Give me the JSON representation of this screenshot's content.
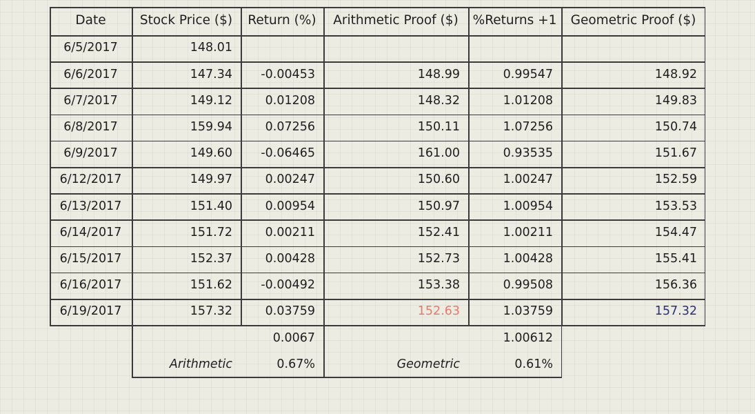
{
  "table": {
    "headers": [
      "Date",
      "Stock Price ($)",
      "Return (%)",
      "Arithmetic Proof ($)",
      "%Returns +1",
      "Geometric Proof ($)"
    ],
    "rows": [
      [
        "6/5/2017",
        "148.01",
        "",
        "",
        "",
        ""
      ],
      [
        "6/6/2017",
        "147.34",
        "-0.00453",
        "148.99",
        "0.99547",
        "148.92"
      ],
      [
        "6/7/2017",
        "149.12",
        "0.01208",
        "148.32",
        "1.01208",
        "149.83"
      ],
      [
        "6/8/2017",
        "159.94",
        "0.07256",
        "150.11",
        "1.07256",
        "150.74"
      ],
      [
        "6/9/2017",
        "149.60",
        "-0.06465",
        "161.00",
        "0.93535",
        "151.67"
      ],
      [
        "6/12/2017",
        "149.97",
        "0.00247",
        "150.60",
        "1.00247",
        "152.59"
      ],
      [
        "6/13/2017",
        "151.40",
        "0.00954",
        "150.97",
        "1.00954",
        "153.53"
      ],
      [
        "6/14/2017",
        "151.72",
        "0.00211",
        "152.41",
        "1.00211",
        "154.47"
      ],
      [
        "6/15/2017",
        "152.37",
        "0.00428",
        "152.73",
        "1.00428",
        "155.41"
      ],
      [
        "6/16/2017",
        "151.62",
        "-0.00492",
        "153.38",
        "0.99508",
        "156.36"
      ],
      [
        "6/19/2017",
        "157.32",
        "0.03759",
        "152.63",
        "1.03759",
        "157.32"
      ]
    ],
    "summary": {
      "arithmetic_mean": "0.0067",
      "arithmetic_label": "Arithmetic",
      "arithmetic_percent": "0.67%",
      "geometric_mean": "1.00612",
      "geometric_label": "Geometric",
      "geometric_percent": "0.61%"
    },
    "highlight_colors": {
      "arithmetic_final": "#e87a6a",
      "geometric_final": "#2a2f7a"
    }
  }
}
